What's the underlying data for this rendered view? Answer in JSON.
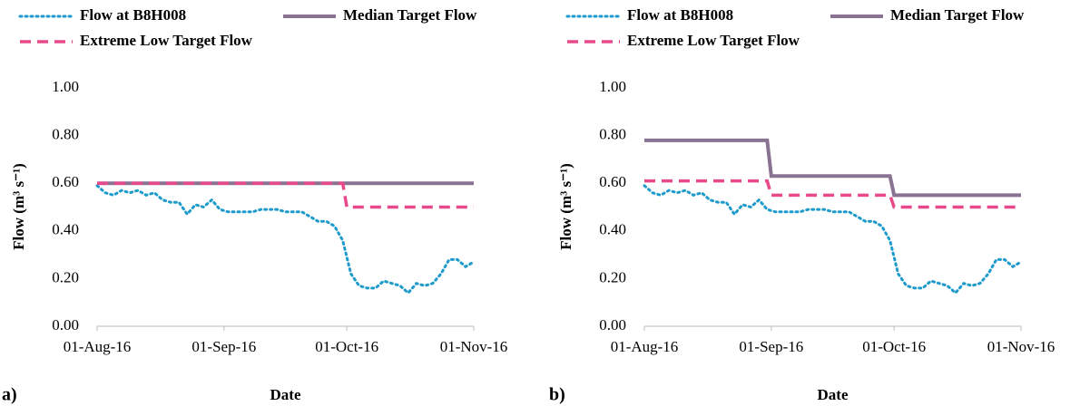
{
  "chart_data": [
    {
      "type": "line",
      "panel_label": "a)",
      "xlabel": "Date",
      "ylabel": "Flow (m³ s⁻¹)",
      "xlim": [
        "2016-08-01",
        "2016-11-01"
      ],
      "xticks": [
        {
          "value": "2016-08-01",
          "label": "01-Aug-16"
        },
        {
          "value": "2016-09-01",
          "label": "01-Sep-16"
        },
        {
          "value": "2016-10-01",
          "label": "01-Oct-16"
        },
        {
          "value": "2016-11-01",
          "label": "01-Nov-16"
        }
      ],
      "ylim": [
        0,
        1
      ],
      "yticks": [
        {
          "value": 0,
          "label": "0.00"
        },
        {
          "value": 0.2,
          "label": "0.20"
        },
        {
          "value": 0.4,
          "label": "0.40"
        },
        {
          "value": 0.6,
          "label": "0.60"
        },
        {
          "value": 0.8,
          "label": "0.80"
        },
        {
          "value": 1,
          "label": "1.00"
        }
      ],
      "grid": false,
      "series": [
        {
          "name": "Flow at B8H008",
          "color": "#1e9bcb",
          "style": "dot",
          "x": [
            "2016-08-01",
            "2016-08-03",
            "2016-08-05",
            "2016-08-07",
            "2016-08-09",
            "2016-08-11",
            "2016-08-13",
            "2016-08-15",
            "2016-08-17",
            "2016-08-19",
            "2016-08-21",
            "2016-08-23",
            "2016-08-25",
            "2016-08-27",
            "2016-08-29",
            "2016-08-31",
            "2016-09-02",
            "2016-09-04",
            "2016-09-06",
            "2016-09-08",
            "2016-09-10",
            "2016-09-12",
            "2016-09-14",
            "2016-09-16",
            "2016-09-18",
            "2016-09-20",
            "2016-09-22",
            "2016-09-24",
            "2016-09-26",
            "2016-09-28",
            "2016-09-30",
            "2016-10-02",
            "2016-10-04",
            "2016-10-06",
            "2016-10-08",
            "2016-10-10",
            "2016-10-12",
            "2016-10-14",
            "2016-10-16",
            "2016-10-18",
            "2016-10-20",
            "2016-10-22",
            "2016-10-24",
            "2016-10-26",
            "2016-10-28",
            "2016-10-30",
            "2016-11-01"
          ],
          "values": [
            0.59,
            0.56,
            0.55,
            0.57,
            0.56,
            0.57,
            0.55,
            0.56,
            0.53,
            0.52,
            0.52,
            0.47,
            0.51,
            0.5,
            0.53,
            0.49,
            0.48,
            0.48,
            0.48,
            0.48,
            0.49,
            0.49,
            0.49,
            0.48,
            0.48,
            0.48,
            0.46,
            0.44,
            0.44,
            0.42,
            0.36,
            0.22,
            0.17,
            0.16,
            0.16,
            0.19,
            0.18,
            0.17,
            0.14,
            0.18,
            0.17,
            0.18,
            0.22,
            0.28,
            0.28,
            0.25,
            0.27
          ]
        },
        {
          "name": "Median Target Flow",
          "color": "#8a7292",
          "style": "solid",
          "x": [
            "2016-08-01",
            "2016-11-01"
          ],
          "values": [
            0.6,
            0.6
          ]
        },
        {
          "name": "Extreme Low Target Flow",
          "color": "#e8498a",
          "style": "dash",
          "x": [
            "2016-08-01",
            "2016-09-30",
            "2016-10-01",
            "2016-11-01"
          ],
          "values": [
            0.6,
            0.6,
            0.5,
            0.5
          ]
        }
      ]
    },
    {
      "type": "line",
      "panel_label": "b)",
      "xlabel": "Date",
      "ylabel": "Flow (m³ s⁻¹)",
      "xlim": [
        "2016-08-01",
        "2016-11-01"
      ],
      "xticks": [
        {
          "value": "2016-08-01",
          "label": "01-Aug-16"
        },
        {
          "value": "2016-09-01",
          "label": "01-Sep-16"
        },
        {
          "value": "2016-10-01",
          "label": "01-Oct-16"
        },
        {
          "value": "2016-11-01",
          "label": "01-Nov-16"
        }
      ],
      "ylim": [
        0,
        1
      ],
      "yticks": [
        {
          "value": 0,
          "label": "0.00"
        },
        {
          "value": 0.2,
          "label": "0.20"
        },
        {
          "value": 0.4,
          "label": "0.40"
        },
        {
          "value": 0.6,
          "label": "0.60"
        },
        {
          "value": 0.8,
          "label": "0.80"
        },
        {
          "value": 1,
          "label": "1.00"
        }
      ],
      "grid": false,
      "series": [
        {
          "name": "Flow at B8H008",
          "color": "#1e9bcb",
          "style": "dot",
          "x": [
            "2016-08-01",
            "2016-08-03",
            "2016-08-05",
            "2016-08-07",
            "2016-08-09",
            "2016-08-11",
            "2016-08-13",
            "2016-08-15",
            "2016-08-17",
            "2016-08-19",
            "2016-08-21",
            "2016-08-23",
            "2016-08-25",
            "2016-08-27",
            "2016-08-29",
            "2016-08-31",
            "2016-09-02",
            "2016-09-04",
            "2016-09-06",
            "2016-09-08",
            "2016-09-10",
            "2016-09-12",
            "2016-09-14",
            "2016-09-16",
            "2016-09-18",
            "2016-09-20",
            "2016-09-22",
            "2016-09-24",
            "2016-09-26",
            "2016-09-28",
            "2016-09-30",
            "2016-10-02",
            "2016-10-04",
            "2016-10-06",
            "2016-10-08",
            "2016-10-10",
            "2016-10-12",
            "2016-10-14",
            "2016-10-16",
            "2016-10-18",
            "2016-10-20",
            "2016-10-22",
            "2016-10-24",
            "2016-10-26",
            "2016-10-28",
            "2016-10-30",
            "2016-11-01"
          ],
          "values": [
            0.59,
            0.56,
            0.55,
            0.57,
            0.56,
            0.57,
            0.55,
            0.56,
            0.53,
            0.52,
            0.52,
            0.47,
            0.51,
            0.5,
            0.53,
            0.49,
            0.48,
            0.48,
            0.48,
            0.48,
            0.49,
            0.49,
            0.49,
            0.48,
            0.48,
            0.48,
            0.46,
            0.44,
            0.44,
            0.42,
            0.36,
            0.22,
            0.17,
            0.16,
            0.16,
            0.19,
            0.18,
            0.17,
            0.14,
            0.18,
            0.17,
            0.18,
            0.22,
            0.28,
            0.28,
            0.25,
            0.27
          ]
        },
        {
          "name": "Median Target Flow",
          "color": "#8a7292",
          "style": "solid",
          "x": [
            "2016-08-01",
            "2016-08-31",
            "2016-09-01",
            "2016-09-30",
            "2016-10-01",
            "2016-11-01"
          ],
          "values": [
            0.78,
            0.78,
            0.63,
            0.63,
            0.55,
            0.55
          ]
        },
        {
          "name": "Extreme Low Target Flow",
          "color": "#e8498a",
          "style": "dash",
          "x": [
            "2016-08-01",
            "2016-08-31",
            "2016-09-01",
            "2016-09-30",
            "2016-10-01",
            "2016-11-01"
          ],
          "values": [
            0.61,
            0.61,
            0.55,
            0.55,
            0.5,
            0.5
          ]
        }
      ]
    }
  ]
}
